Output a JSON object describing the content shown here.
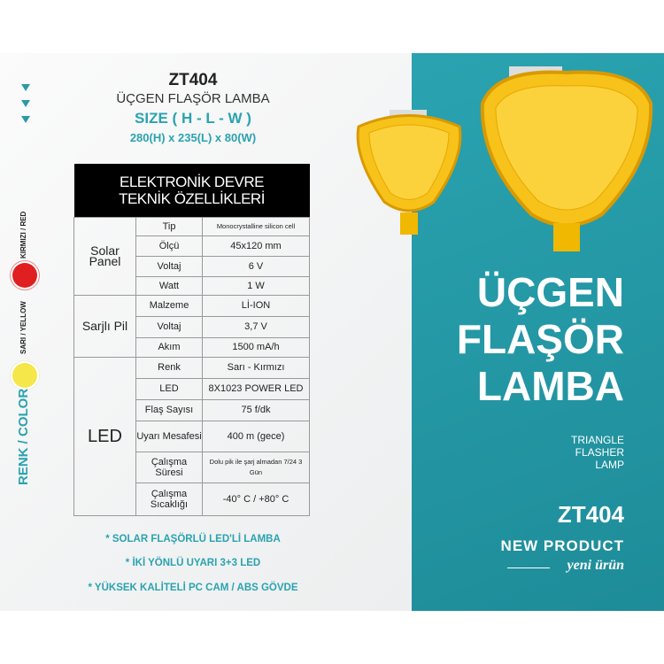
{
  "header": {
    "model": "ZT404",
    "name": "ÜÇGEN FLAŞÖR LAMBA",
    "size_title": "SIZE ( H - L - W )",
    "size_value": "280(H) x 235(L) x 80(W)"
  },
  "colors": {
    "accent": "#2aa3b0",
    "red": "#e02020",
    "yellow": "#f5e64a",
    "lamp": "#f7c21a"
  },
  "side": {
    "red_label": "KIRMIZI / RED",
    "yellow_label": "SARI / YELLOW",
    "color_title": "RENK / COLOR"
  },
  "table": {
    "title_line1": "ELEKTRONİK DEVRE",
    "title_line2": "TEKNİK ÖZELLİKLERİ",
    "groups": [
      {
        "name": "Solar Panel",
        "rows": [
          [
            "Tip",
            "Monocrystalline silicon cell"
          ],
          [
            "Ölçü",
            "45x120 mm"
          ],
          [
            "Voltaj",
            "6 V"
          ],
          [
            "Watt",
            "1 W"
          ]
        ]
      },
      {
        "name": "Sarjlı Pil",
        "rows": [
          [
            "Malzeme",
            "Lİ-ION"
          ],
          [
            "Voltaj",
            "3,7 V"
          ],
          [
            "Akım",
            "1500 mA/h"
          ]
        ]
      },
      {
        "name": "LED",
        "rows": [
          [
            "Renk",
            "Sarı - Kırmızı"
          ],
          [
            "LED",
            "8X1023 POWER LED"
          ],
          [
            "Flaş Sayısı",
            "75 f/dk"
          ],
          [
            "Uyarı Mesafesi",
            "400 m (gece)"
          ],
          [
            "Çalışma Süresi",
            "Dolu pik ile şarj almadan 7/24 3 Gün"
          ],
          [
            "Çalışma Sıcaklığı",
            "-40° C / +80° C"
          ]
        ]
      }
    ]
  },
  "bullets": [
    "* SOLAR FLAŞÖRLÜ LED'Lİ LAMBA",
    "* İKİ YÖNLÜ UYARI 3+3 LED",
    "* YÜKSEK KALİTELİ PC CAM / ABS GÖVDE"
  ],
  "promo": {
    "line1": "ÜÇGEN",
    "line2": "FLAŞÖR",
    "line3": "LAMBA",
    "en1": "TRIANGLE",
    "en2": "FLASHER",
    "en3": "LAMP",
    "model": "ZT404",
    "new": "NEW PRODUCT",
    "tr": "yeni ürün"
  }
}
